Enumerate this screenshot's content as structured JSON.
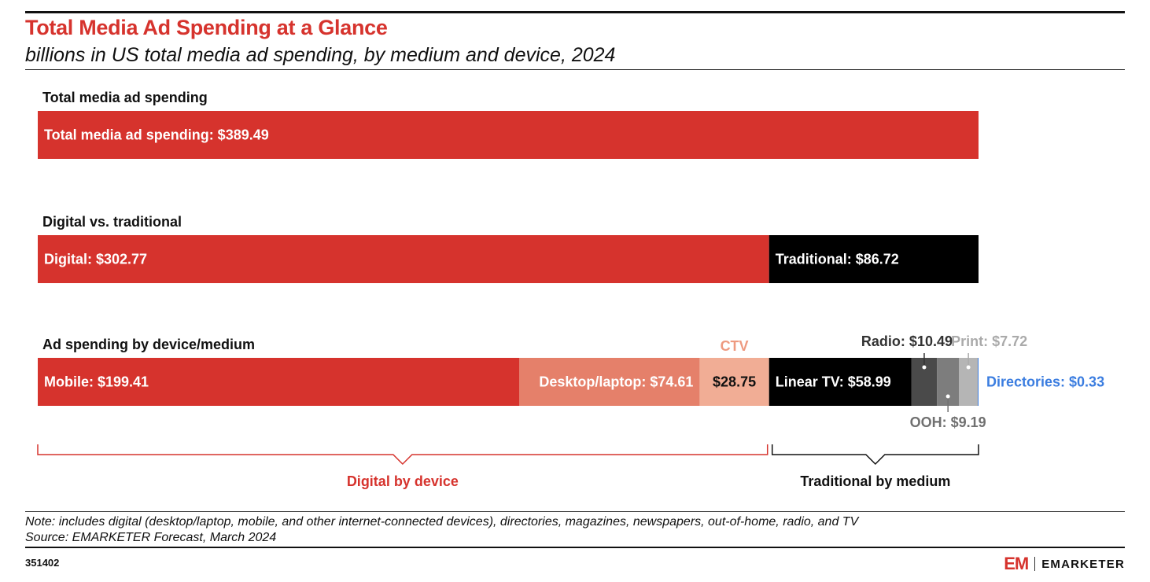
{
  "header": {
    "title": "Total Media Ad Spending at a Glance",
    "subtitle": "billions in US total media ad spending, by medium and device, 2024"
  },
  "chart_data": {
    "type": "bar",
    "orientation": "horizontal",
    "stacked": true,
    "title": "Total Media Ad Spending at a Glance",
    "subtitle": "billions in US total media ad spending, by medium and device, 2024",
    "total": 389.49,
    "rows": [
      {
        "label": "Total media ad spending",
        "segments": [
          {
            "name": "Total media ad spending",
            "value": 389.49,
            "display": "Total media ad spending: $389.49",
            "color": "#d6332d",
            "text_color": "#ffffff"
          }
        ]
      },
      {
        "label": "Digital vs. traditional",
        "segments": [
          {
            "name": "Digital",
            "value": 302.77,
            "display": "Digital: $302.77",
            "color": "#d6332d",
            "text_color": "#ffffff"
          },
          {
            "name": "Traditional",
            "value": 86.72,
            "display": "Traditional: $86.72",
            "color": "#000000",
            "text_color": "#ffffff"
          }
        ]
      },
      {
        "label": "Ad spending by device/medium",
        "segments": [
          {
            "name": "Mobile",
            "value": 199.41,
            "display": "Mobile: $199.41",
            "color": "#d6332d",
            "text_color": "#ffffff"
          },
          {
            "name": "Desktop/laptop",
            "value": 74.61,
            "display": "Desktop/laptop: $74.61",
            "color": "#e5806a",
            "text_color": "#ffffff"
          },
          {
            "name": "CTV",
            "value": 28.75,
            "display": "$28.75",
            "color": "#f1ad95",
            "text_color": "#111111",
            "callout": "CTV",
            "callout_color": "#ee9a80"
          },
          {
            "name": "Linear TV",
            "value": 58.99,
            "display": "Linear TV: $58.99",
            "color": "#000000",
            "text_color": "#ffffff"
          },
          {
            "name": "Radio",
            "value": 10.49,
            "display": "",
            "color": "#4a4a4a",
            "callout": "Radio: $10.49",
            "callout_color": "#333333",
            "callout_pos": "above"
          },
          {
            "name": "OOH",
            "value": 9.19,
            "display": "",
            "color": "#7d7d7d",
            "callout": "OOH: $9.19",
            "callout_color": "#707070",
            "callout_pos": "below"
          },
          {
            "name": "Print",
            "value": 7.72,
            "display": "",
            "color": "#b5b5b5",
            "callout": "Print: $7.72",
            "callout_color": "#aaaaaa",
            "callout_pos": "above"
          },
          {
            "name": "Directories",
            "value": 0.33,
            "display": "",
            "color": "#3b7de0",
            "callout": "Directories: $0.33",
            "callout_color": "#3b7de0",
            "callout_pos": "right"
          }
        ]
      }
    ],
    "brackets": [
      {
        "label": "Digital by device",
        "color": "#d6332d"
      },
      {
        "label": "Traditional by medium",
        "color": "#111111"
      }
    ]
  },
  "footer": {
    "note": "Note: includes digital (desktop/laptop, mobile, and other internet-connected devices), directories, magazines, newspapers, out-of-home, radio, and TV",
    "source": "Source: EMARKETER Forecast, March 2024",
    "chart_id": "351402",
    "logo_mark": "EM",
    "logo_text": "EMARKETER"
  }
}
